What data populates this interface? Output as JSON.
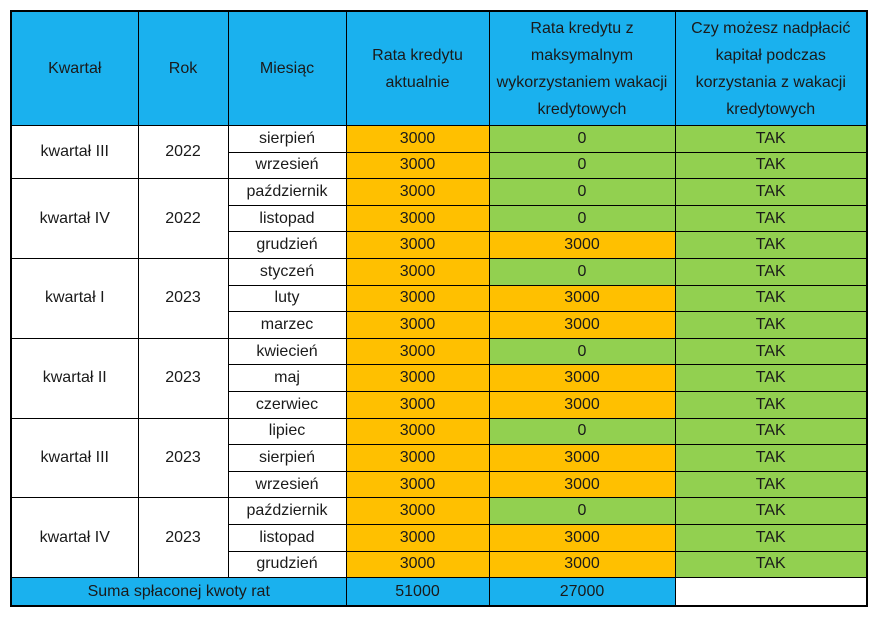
{
  "colors": {
    "header_bg": "#1ab1ee",
    "orange_cell": "#ffc000",
    "green_cell": "#92d050"
  },
  "headers": [
    "Kwartał",
    "Rok",
    "Miesiąc",
    "Rata kredytu aktualnie",
    "Rata kredytu z maksymalnym wykorzystaniem wakacji kredytowych",
    "Czy możesz nadpłacić kapitał podczas korzystania z wakacji kredytowych"
  ],
  "quarters": [
    {
      "quarter": "kwartał III",
      "year": "2022",
      "months": [
        {
          "month": "sierpień",
          "current": "3000",
          "holiday": "0",
          "overpay": "TAK"
        },
        {
          "month": "wrzesień",
          "current": "3000",
          "holiday": "0",
          "overpay": "TAK"
        }
      ]
    },
    {
      "quarter": "kwartał IV",
      "year": "2022",
      "months": [
        {
          "month": "październik",
          "current": "3000",
          "holiday": "0",
          "overpay": "TAK"
        },
        {
          "month": "listopad",
          "current": "3000",
          "holiday": "0",
          "overpay": "TAK"
        },
        {
          "month": "grudzień",
          "current": "3000",
          "holiday": "3000",
          "overpay": "TAK"
        }
      ]
    },
    {
      "quarter": "kwartał I",
      "year": "2023",
      "months": [
        {
          "month": "styczeń",
          "current": "3000",
          "holiday": "0",
          "overpay": "TAK"
        },
        {
          "month": "luty",
          "current": "3000",
          "holiday": "3000",
          "overpay": "TAK"
        },
        {
          "month": "marzec",
          "current": "3000",
          "holiday": "3000",
          "overpay": "TAK"
        }
      ]
    },
    {
      "quarter": "kwartał II",
      "year": "2023",
      "months": [
        {
          "month": "kwiecień",
          "current": "3000",
          "holiday": "0",
          "overpay": "TAK"
        },
        {
          "month": "maj",
          "current": "3000",
          "holiday": "3000",
          "overpay": "TAK"
        },
        {
          "month": "czerwiec",
          "current": "3000",
          "holiday": "3000",
          "overpay": "TAK"
        }
      ]
    },
    {
      "quarter": "kwartał III",
      "year": "2023",
      "months": [
        {
          "month": "lipiec",
          "current": "3000",
          "holiday": "0",
          "overpay": "TAK"
        },
        {
          "month": "sierpień",
          "current": "3000",
          "holiday": "3000",
          "overpay": "TAK"
        },
        {
          "month": "wrzesień",
          "current": "3000",
          "holiday": "3000",
          "overpay": "TAK"
        }
      ]
    },
    {
      "quarter": "kwartał IV",
      "year": "2023",
      "months": [
        {
          "month": "październik",
          "current": "3000",
          "holiday": "0",
          "overpay": "TAK"
        },
        {
          "month": "listopad",
          "current": "3000",
          "holiday": "3000",
          "overpay": "TAK"
        },
        {
          "month": "grudzień",
          "current": "3000",
          "holiday": "3000",
          "overpay": "TAK"
        }
      ]
    }
  ],
  "summary": {
    "label": "Suma spłaconej kwoty rat",
    "current_total": "51000",
    "holiday_total": "27000"
  },
  "chart_data": {
    "type": "table",
    "columns": [
      "Kwartał",
      "Rok",
      "Miesiąc",
      "Rata kredytu aktualnie",
      "Rata kredytu z maksymalnym wykorzystaniem wakacji kredytowych",
      "Czy możesz nadpłacić kapitał podczas korzystania z wakacji kredytowych"
    ],
    "rows": [
      [
        "kwartał III",
        "2022",
        "sierpień",
        3000,
        0,
        "TAK"
      ],
      [
        "kwartał III",
        "2022",
        "wrzesień",
        3000,
        0,
        "TAK"
      ],
      [
        "kwartał IV",
        "2022",
        "październik",
        3000,
        0,
        "TAK"
      ],
      [
        "kwartał IV",
        "2022",
        "listopad",
        3000,
        0,
        "TAK"
      ],
      [
        "kwartał IV",
        "2022",
        "grudzień",
        3000,
        3000,
        "TAK"
      ],
      [
        "kwartał I",
        "2023",
        "styczeń",
        3000,
        0,
        "TAK"
      ],
      [
        "kwartał I",
        "2023",
        "luty",
        3000,
        3000,
        "TAK"
      ],
      [
        "kwartał I",
        "2023",
        "marzec",
        3000,
        3000,
        "TAK"
      ],
      [
        "kwartał II",
        "2023",
        "kwiecień",
        3000,
        0,
        "TAK"
      ],
      [
        "kwartał II",
        "2023",
        "maj",
        3000,
        3000,
        "TAK"
      ],
      [
        "kwartał II",
        "2023",
        "czerwiec",
        3000,
        3000,
        "TAK"
      ],
      [
        "kwartał III",
        "2023",
        "lipiec",
        3000,
        0,
        "TAK"
      ],
      [
        "kwartał III",
        "2023",
        "sierpień",
        3000,
        3000,
        "TAK"
      ],
      [
        "kwartał III",
        "2023",
        "wrzesień",
        3000,
        3000,
        "TAK"
      ],
      [
        "kwartał IV",
        "2023",
        "październik",
        3000,
        0,
        "TAK"
      ],
      [
        "kwartał IV",
        "2023",
        "listopad",
        3000,
        3000,
        "TAK"
      ],
      [
        "kwartał IV",
        "2023",
        "grudzień",
        3000,
        3000,
        "TAK"
      ]
    ],
    "totals": {
      "label": "Suma spłaconej kwoty rat",
      "current": 51000,
      "holiday": 27000
    }
  }
}
